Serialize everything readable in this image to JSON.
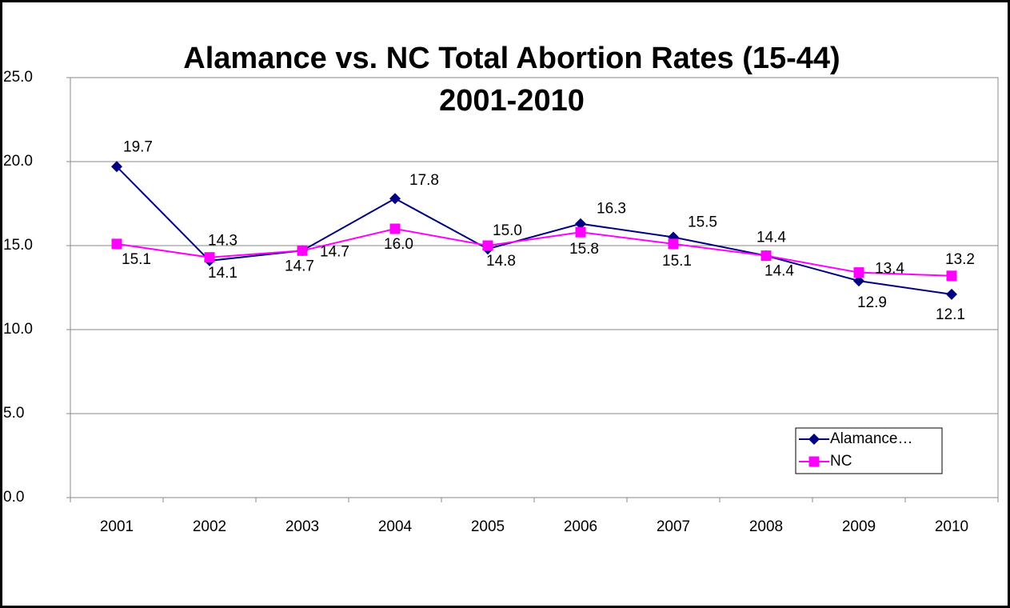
{
  "chart_data": {
    "type": "line",
    "title": "Alamance vs. NC Total Abortion Rates (15-44)",
    "subtitle": "2001-2010",
    "categories": [
      "2001",
      "2002",
      "2003",
      "2004",
      "2005",
      "2006",
      "2007",
      "2008",
      "2009",
      "2010"
    ],
    "series": [
      {
        "name": "Alamance…",
        "color": "#000080",
        "marker": "diamond",
        "values": [
          19.7,
          14.1,
          14.7,
          17.8,
          14.8,
          16.3,
          15.5,
          14.4,
          12.9,
          12.1
        ],
        "value_labels": [
          "19.7",
          "14.1",
          "14.7",
          "17.8",
          "14.8",
          "16.3",
          "15.5",
          "14.4",
          "12.9",
          "12.1"
        ]
      },
      {
        "name": "NC",
        "color": "#ff00ff",
        "marker": "square",
        "values": [
          15.1,
          14.3,
          14.7,
          16.0,
          15.0,
          15.8,
          15.1,
          14.4,
          13.4,
          13.2
        ],
        "value_labels": [
          "15.1",
          "14.3",
          "14.7",
          "16.0",
          "15.0",
          "15.8",
          "15.1",
          "14.4",
          "13.4",
          "13.2"
        ]
      }
    ],
    "ylim": [
      0,
      25
    ],
    "yticks": [
      {
        "value": 0,
        "label": "0.0"
      },
      {
        "value": 5,
        "label": "5.0"
      },
      {
        "value": 10,
        "label": "10.0"
      },
      {
        "value": 15,
        "label": "15.0"
      },
      {
        "value": 20,
        "label": "20.0"
      },
      {
        "value": 25,
        "label": "25.0"
      }
    ],
    "grid": true,
    "legend": "lower right"
  }
}
